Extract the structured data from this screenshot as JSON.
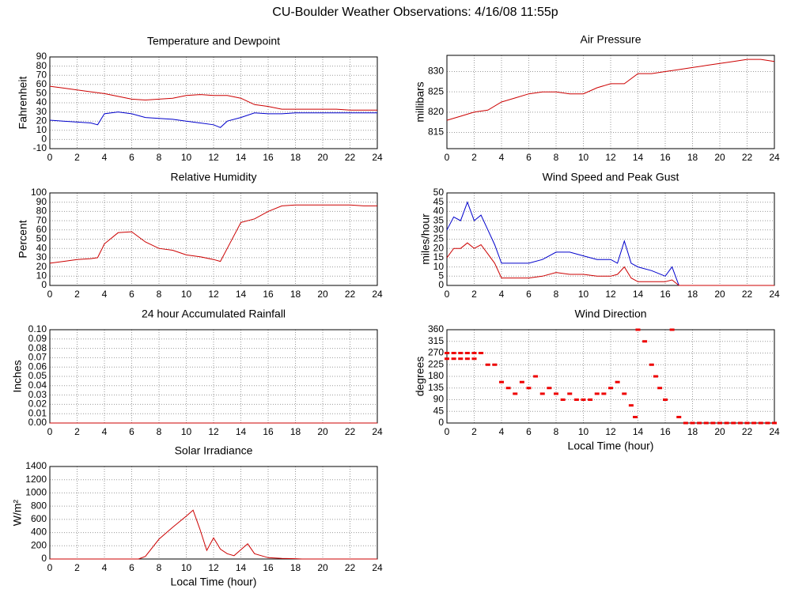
{
  "title": "CU-Boulder Weather Observations: 4/16/08 11:55p",
  "chart_data": [
    {
      "type": "line",
      "title": "Temperature and Dewpoint",
      "ylabel": "Fahrenheit",
      "x": [
        0,
        1,
        2,
        3,
        3.5,
        4,
        5,
        6,
        7,
        8,
        9,
        10,
        11,
        12,
        12.5,
        13,
        14,
        15,
        16,
        17,
        18,
        19,
        20,
        21,
        22,
        23,
        24
      ],
      "series": [
        {
          "name": "Temperature",
          "color": "#cc0000",
          "values": [
            58,
            56,
            54,
            52,
            51,
            50,
            47,
            44,
            43,
            44,
            45,
            48,
            49,
            48,
            48,
            48,
            45,
            38,
            36,
            33,
            33,
            33,
            33,
            33,
            32,
            32,
            32
          ]
        },
        {
          "name": "Dewpoint",
          "color": "#0000cc",
          "values": [
            21,
            20,
            19,
            18,
            16,
            28,
            30,
            28,
            24,
            23,
            22,
            20,
            18,
            16,
            13,
            20,
            24,
            29,
            28,
            28,
            29,
            29,
            29,
            29,
            29,
            29,
            29
          ]
        }
      ],
      "xlim": [
        0,
        24
      ],
      "xticks": [
        0,
        2,
        4,
        6,
        8,
        10,
        12,
        14,
        16,
        18,
        20,
        22,
        24
      ],
      "ylim": [
        -10,
        90
      ],
      "yticks": [
        -10,
        0,
        10,
        20,
        30,
        40,
        50,
        60,
        70,
        80,
        90
      ],
      "grid": true
    },
    {
      "type": "line",
      "title": "Air Pressure",
      "ylabel": "millibars",
      "x": [
        0,
        1,
        2,
        3,
        4,
        5,
        6,
        7,
        8,
        9,
        10,
        11,
        12,
        13,
        14,
        15,
        16,
        17,
        18,
        19,
        20,
        21,
        22,
        23,
        24
      ],
      "series": [
        {
          "name": "Pressure",
          "color": "#cc0000",
          "values": [
            818,
            819,
            820,
            820.5,
            822.5,
            823.5,
            824.5,
            825,
            825,
            824.5,
            824.5,
            826,
            827,
            827,
            829.5,
            829.5,
            830,
            830.5,
            831,
            831.5,
            832,
            832.5,
            833,
            833,
            832.5
          ]
        }
      ],
      "xlim": [
        0,
        24
      ],
      "xticks": [
        0,
        2,
        4,
        6,
        8,
        10,
        12,
        14,
        16,
        18,
        20,
        22,
        24
      ],
      "ylim": [
        811,
        834
      ],
      "yticks": [
        815,
        820,
        825,
        830
      ],
      "grid": true
    },
    {
      "type": "line",
      "title": "Relative Humidity",
      "ylabel": "Percent",
      "x": [
        0,
        1,
        2,
        3,
        3.5,
        4,
        5,
        6,
        7,
        8,
        9,
        10,
        11,
        12,
        12.5,
        13,
        14,
        15,
        16,
        17,
        18,
        19,
        20,
        21,
        22,
        23,
        24
      ],
      "series": [
        {
          "name": "Humidity",
          "color": "#cc0000",
          "values": [
            24,
            26,
            28,
            29,
            30,
            45,
            57,
            58,
            47,
            40,
            38,
            33,
            31,
            28,
            26,
            40,
            68,
            72,
            80,
            86,
            87,
            87,
            87,
            87,
            87,
            86,
            86
          ]
        }
      ],
      "xlim": [
        0,
        24
      ],
      "xticks": [
        0,
        2,
        4,
        6,
        8,
        10,
        12,
        14,
        16,
        18,
        20,
        22,
        24
      ],
      "ylim": [
        0,
        100
      ],
      "yticks": [
        0,
        10,
        20,
        30,
        40,
        50,
        60,
        70,
        80,
        90,
        100
      ],
      "grid": true
    },
    {
      "type": "line",
      "title": "Wind Speed and Peak Gust",
      "ylabel": "miles/hour",
      "x": [
        0,
        0.5,
        1,
        1.5,
        2,
        2.5,
        3,
        3.5,
        4,
        5,
        6,
        7,
        8,
        9,
        10,
        11,
        12,
        12.5,
        13,
        13.5,
        14,
        15,
        16,
        16.5,
        17,
        18,
        19,
        20,
        21,
        22,
        23,
        24
      ],
      "series": [
        {
          "name": "Peak Gust",
          "color": "#0000cc",
          "values": [
            30,
            37,
            35,
            45,
            35,
            38,
            30,
            22,
            12,
            12,
            12,
            14,
            18,
            18,
            16,
            14,
            14,
            12,
            24,
            12,
            10,
            8,
            5,
            10,
            0,
            0,
            0,
            0,
            0,
            0,
            0,
            0
          ]
        },
        {
          "name": "Wind Speed",
          "color": "#cc0000",
          "values": [
            15,
            20,
            20,
            23,
            20,
            22,
            17,
            12,
            4,
            4,
            4,
            5,
            7,
            6,
            6,
            5,
            5,
            6,
            10,
            4,
            2,
            2,
            2,
            3,
            0,
            0,
            0,
            0,
            0,
            0,
            0,
            0
          ]
        }
      ],
      "xlim": [
        0,
        24
      ],
      "xticks": [
        0,
        2,
        4,
        6,
        8,
        10,
        12,
        14,
        16,
        18,
        20,
        22,
        24
      ],
      "ylim": [
        0,
        50
      ],
      "yticks": [
        0,
        5,
        10,
        15,
        20,
        25,
        30,
        35,
        40,
        45,
        50
      ],
      "grid": true
    },
    {
      "type": "line",
      "title": "24 hour Accumulated Rainfall",
      "ylabel": "Inches",
      "x": [
        0,
        24
      ],
      "series": [
        {
          "name": "Rainfall",
          "color": "#cc0000",
          "values": [
            0,
            0
          ]
        }
      ],
      "xlim": [
        0,
        24
      ],
      "xticks": [
        0,
        2,
        4,
        6,
        8,
        10,
        12,
        14,
        16,
        18,
        20,
        22,
        24
      ],
      "ylim": [
        0,
        0.1
      ],
      "yticks": [
        {
          "value": 0,
          "label": "0.00"
        },
        {
          "value": 0.01,
          "label": "0.01"
        },
        {
          "value": 0.02,
          "label": "0.02"
        },
        {
          "value": 0.03,
          "label": "0.03"
        },
        {
          "value": 0.04,
          "label": "0.04"
        },
        {
          "value": 0.05,
          "label": "0.05"
        },
        {
          "value": 0.06,
          "label": "0.06"
        },
        {
          "value": 0.07,
          "label": "0.07"
        },
        {
          "value": 0.08,
          "label": "0.08"
        },
        {
          "value": 0.09,
          "label": "0.09"
        },
        {
          "value": 0.1,
          "label": "0.10"
        }
      ],
      "grid": true
    },
    {
      "type": "scatter",
      "title": "Wind Direction",
      "ylabel": "degrees",
      "xlabel": "Local Time (hour)",
      "x": [
        0,
        0.5,
        1,
        1.5,
        2,
        2.5,
        0,
        0.5,
        1,
        1.5,
        2,
        3,
        3.5,
        4,
        4.5,
        5,
        5.5,
        6,
        6.5,
        7,
        7.5,
        8,
        8.5,
        9,
        9.5,
        10,
        10.5,
        11,
        11.5,
        12,
        12.5,
        13,
        13.5,
        13.8,
        14,
        14.5,
        15,
        15.3,
        15.6,
        16,
        16.5,
        17,
        17.5,
        18,
        18.5,
        19,
        19.5,
        20,
        20.5,
        21,
        21.5,
        22,
        22.5,
        23,
        23.5,
        24
      ],
      "series": [
        {
          "name": "Direction",
          "color": "#ee0000",
          "values": [
            270,
            270,
            270,
            270,
            270,
            270,
            248,
            248,
            248,
            248,
            248,
            225,
            225,
            158,
            135,
            113,
            158,
            135,
            180,
            113,
            135,
            113,
            90,
            113,
            90,
            90,
            90,
            113,
            113,
            135,
            158,
            113,
            68,
            23,
            360,
            315,
            225,
            180,
            135,
            90,
            360,
            23,
            0,
            0,
            0,
            0,
            0,
            0,
            0,
            0,
            0,
            0,
            0,
            0,
            0,
            0
          ]
        }
      ],
      "xlim": [
        0,
        24
      ],
      "xticks": [
        0,
        2,
        4,
        6,
        8,
        10,
        12,
        14,
        16,
        18,
        20,
        22,
        24
      ],
      "ylim": [
        0,
        360
      ],
      "yticks": [
        0,
        45,
        90,
        135,
        180,
        225,
        270,
        315,
        360
      ],
      "grid": true
    },
    {
      "type": "line",
      "title": "Solar Irradiance",
      "ylabel": "W/m²",
      "xlabel": "Local Time (hour)",
      "x": [
        0,
        6.5,
        7,
        8,
        9,
        10,
        10.5,
        11,
        11.5,
        12,
        12.5,
        13,
        13.5,
        14,
        14.5,
        15,
        16,
        17,
        18,
        18.5,
        24
      ],
      "series": [
        {
          "name": "Irradiance",
          "color": "#cc0000",
          "values": [
            0,
            0,
            40,
            300,
            480,
            650,
            740,
            450,
            130,
            320,
            150,
            80,
            50,
            140,
            230,
            80,
            20,
            10,
            5,
            0,
            0
          ]
        }
      ],
      "xlim": [
        0,
        24
      ],
      "xticks": [
        0,
        2,
        4,
        6,
        8,
        10,
        12,
        14,
        16,
        18,
        20,
        22,
        24
      ],
      "ylim": [
        0,
        1400
      ],
      "yticks": [
        0,
        200,
        400,
        600,
        800,
        1000,
        1200,
        1400
      ],
      "grid": true
    }
  ]
}
